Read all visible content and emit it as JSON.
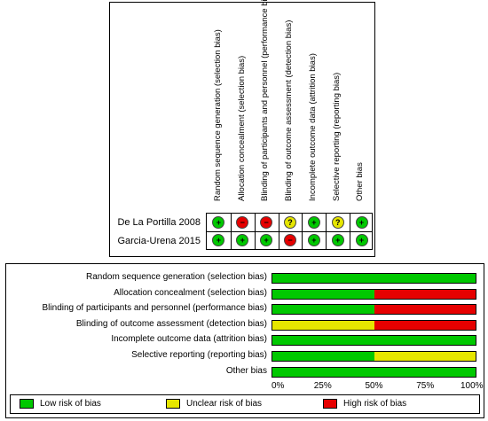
{
  "colors": {
    "low": "#00c800",
    "unclear": "#e6e600",
    "high": "#e60000"
  },
  "domains": [
    "Random sequence generation (selection bias)",
    "Allocation concealment (selection bias)",
    "Blinding of participants and personnel (performance bias)",
    "Blinding of outcome assessment (detection bias)",
    "Incomplete outcome data (attrition bias)",
    "Selective reporting (reporting bias)",
    "Other bias"
  ],
  "studies": [
    {
      "name": "De La Portilla 2008",
      "judgements": [
        "low",
        "high",
        "high",
        "unclear",
        "low",
        "unclear",
        "low"
      ]
    },
    {
      "name": "Garcia-Urena 2015",
      "judgements": [
        "low",
        "low",
        "low",
        "high",
        "low",
        "low",
        "low"
      ]
    }
  ],
  "symbols": {
    "low": "+",
    "unclear": "?",
    "high": "−"
  },
  "chart_data": {
    "type": "bar",
    "orientation": "horizontal-stacked-percent",
    "categories": [
      "Random sequence generation (selection bias)",
      "Allocation concealment (selection bias)",
      "Blinding of participants and personnel (performance bias)",
      "Blinding of outcome assessment (detection bias)",
      "Incomplete outcome data (attrition bias)",
      "Selective reporting (reporting bias)",
      "Other bias"
    ],
    "series": [
      {
        "name": "Low risk of bias",
        "key": "low",
        "values": [
          100,
          50,
          50,
          0,
          100,
          50,
          100
        ]
      },
      {
        "name": "Unclear risk of bias",
        "key": "unclear",
        "values": [
          0,
          0,
          0,
          50,
          0,
          50,
          0
        ]
      },
      {
        "name": "High risk of bias",
        "key": "high",
        "values": [
          0,
          50,
          50,
          50,
          0,
          0,
          0
        ]
      }
    ],
    "xticks": [
      "0%",
      "25%",
      "50%",
      "75%",
      "100%"
    ],
    "xlim": [
      0,
      100
    ],
    "legend_position": "bottom"
  }
}
